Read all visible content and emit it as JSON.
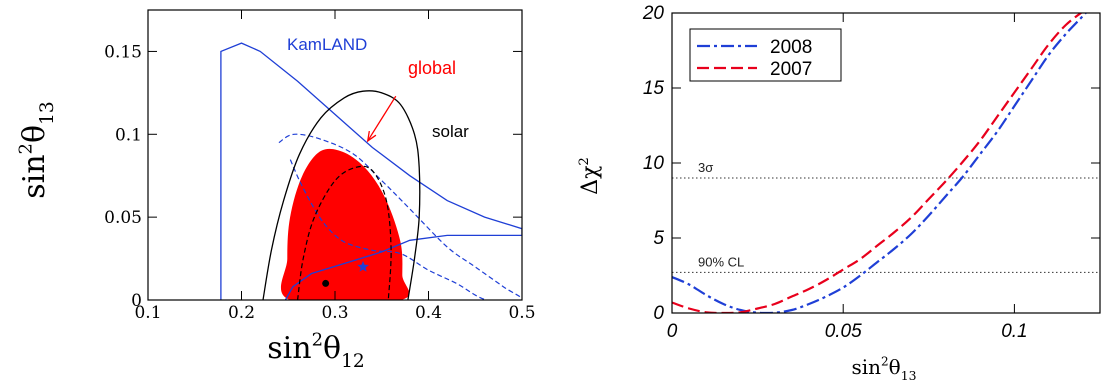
{
  "colors": {
    "kamland": "#1f3fd6",
    "global": "#ff0000",
    "solar": "#000000",
    "series_2008": "#1f3fd6",
    "series_2007": "#e8001c",
    "reference": "#333333",
    "background": "#ffffff"
  },
  "chart_data": [
    {
      "type": "contour",
      "xlabel": {
        "base": "sin",
        "sup": "2",
        "sym": "θ",
        "sub": "12"
      },
      "ylabel": {
        "base": "sin",
        "sup": "2",
        "sym": "θ",
        "sub": "13"
      },
      "xlim": [
        0.1,
        0.5
      ],
      "ylim": [
        0,
        0.175
      ],
      "xticks": [
        0.1,
        0.2,
        0.3,
        0.4,
        0.5
      ],
      "yticks": [
        0,
        0.05,
        0.1,
        0.15
      ],
      "xtick_labels": [
        "0.1",
        "0.2",
        "0.3",
        "0.4",
        "0.5"
      ],
      "ytick_labels": [
        "0",
        "0.05",
        "0.1",
        "0.15"
      ],
      "annotations": {
        "kamland": "KamLAND",
        "global": "global",
        "solar": "solar"
      },
      "regions": [
        {
          "id": "kamland",
          "style": "solid",
          "points": [
            [
              0.178,
              0
            ],
            [
              0.178,
              0.15
            ],
            [
              0.2,
              0.155
            ],
            [
              0.22,
              0.15
            ],
            [
              0.26,
              0.132
            ],
            [
              0.3,
              0.112
            ],
            [
              0.34,
              0.092
            ],
            [
              0.38,
              0.075
            ],
            [
              0.42,
              0.06
            ],
            [
              0.46,
              0.05
            ],
            [
              0.5,
              0.043
            ],
            [
              0.5,
              0.039
            ],
            [
              0.46,
              0.039
            ],
            [
              0.42,
              0.039
            ],
            [
              0.38,
              0.036
            ],
            [
              0.35,
              0.029
            ],
            [
              0.31,
              0.022
            ],
            [
              0.275,
              0.016
            ],
            [
              0.255,
              0.008
            ],
            [
              0.247,
              0
            ]
          ]
        },
        {
          "id": "kamland-inner",
          "style": "dashed",
          "points": [
            [
              0.24,
              0.095
            ],
            [
              0.256,
              0.1
            ],
            [
              0.285,
              0.097
            ],
            [
              0.32,
              0.088
            ],
            [
              0.35,
              0.072
            ],
            [
              0.38,
              0.055
            ],
            [
              0.42,
              0.032
            ],
            [
              0.45,
              0.02
            ],
            [
              0.48,
              0.008
            ],
            [
              0.5,
              0
            ],
            [
              0.462,
              0
            ],
            [
              0.43,
              0.01
            ],
            [
              0.4,
              0.018
            ],
            [
              0.37,
              0.028
            ],
            [
              0.34,
              0.03
            ],
            [
              0.31,
              0.035
            ],
            [
              0.29,
              0.045
            ],
            [
              0.275,
              0.058
            ],
            [
              0.262,
              0.072
            ],
            [
              0.252,
              0.085
            ]
          ]
        },
        {
          "id": "solar",
          "style": "solid",
          "points": [
            [
              0.223,
              0
            ],
            [
              0.232,
              0.03
            ],
            [
              0.245,
              0.06
            ],
            [
              0.262,
              0.088
            ],
            [
              0.285,
              0.11
            ],
            [
              0.31,
              0.122
            ],
            [
              0.33,
              0.126
            ],
            [
              0.35,
              0.125
            ],
            [
              0.37,
              0.118
            ],
            [
              0.385,
              0.1
            ],
            [
              0.39,
              0.08
            ],
            [
              0.39,
              0.05
            ],
            [
              0.385,
              0.025
            ],
            [
              0.378,
              0
            ]
          ]
        },
        {
          "id": "solar-inner",
          "style": "dashed",
          "points": [
            [
              0.26,
              0
            ],
            [
              0.266,
              0.025
            ],
            [
              0.278,
              0.05
            ],
            [
              0.3,
              0.072
            ],
            [
              0.322,
              0.08
            ],
            [
              0.34,
              0.078
            ],
            [
              0.355,
              0.06
            ],
            [
              0.36,
              0.03
            ],
            [
              0.357,
              0
            ]
          ]
        },
        {
          "id": "global",
          "style": "filled",
          "points": [
            [
              0.252,
              0
            ],
            [
              0.249,
              0.025
            ],
            [
              0.252,
              0.05
            ],
            [
              0.265,
              0.075
            ],
            [
              0.285,
              0.09
            ],
            [
              0.31,
              0.089
            ],
            [
              0.335,
              0.078
            ],
            [
              0.355,
              0.06
            ],
            [
              0.37,
              0.035
            ],
            [
              0.372,
              0.015
            ],
            [
              0.37,
              0
            ]
          ]
        }
      ],
      "markers": [
        {
          "id": "global-best-fit",
          "x": 0.29,
          "y": 0.01,
          "shape": "dot"
        },
        {
          "id": "kamland-best-fit",
          "x": 0.33,
          "y": 0.02,
          "shape": "star"
        }
      ],
      "arrow": {
        "from": [
          0.365,
          0.123
        ],
        "to": [
          0.335,
          0.096
        ]
      }
    },
    {
      "type": "line",
      "xlabel": {
        "base": "sin",
        "sup": "2",
        "sym": "θ",
        "sub": "13"
      },
      "ylabel": {
        "base": "Δχ",
        "sup": "2"
      },
      "xlim": [
        0,
        0.125
      ],
      "ylim": [
        0,
        20
      ],
      "xticks": [
        0,
        0.05,
        0.1
      ],
      "yticks": [
        0,
        5,
        10,
        15,
        20
      ],
      "xtick_labels": [
        "0",
        "0.05",
        "0.1"
      ],
      "ytick_labels": [
        "0",
        "5",
        "10",
        "15",
        "20"
      ],
      "legend_position": "top-left",
      "series": [
        {
          "name": "2008",
          "style": "dash-dot",
          "x": [
            0,
            0.005,
            0.01,
            0.015,
            0.02,
            0.025,
            0.03,
            0.035,
            0.04,
            0.045,
            0.05,
            0.055,
            0.06,
            0.065,
            0.07,
            0.075,
            0.08,
            0.085,
            0.09,
            0.095,
            0.1,
            0.105,
            0.11,
            0.115,
            0.12,
            0.122
          ],
          "y": [
            2.4,
            1.9,
            1.2,
            0.6,
            0.2,
            0.02,
            0.02,
            0.2,
            0.6,
            1.1,
            1.7,
            2.5,
            3.4,
            4.3,
            5.3,
            6.5,
            7.8,
            9.1,
            10.6,
            12.1,
            13.8,
            15.5,
            17.2,
            18.6,
            19.8,
            20.3
          ]
        },
        {
          "name": "2007",
          "style": "dashed",
          "x": [
            0,
            0.005,
            0.01,
            0.015,
            0.02,
            0.025,
            0.03,
            0.035,
            0.04,
            0.045,
            0.05,
            0.055,
            0.06,
            0.065,
            0.07,
            0.075,
            0.08,
            0.085,
            0.09,
            0.095,
            0.1,
            0.105,
            0.11,
            0.115,
            0.12
          ],
          "y": [
            0.7,
            0.3,
            0.05,
            0.0,
            0.05,
            0.3,
            0.6,
            1.1,
            1.6,
            2.2,
            2.9,
            3.6,
            4.5,
            5.4,
            6.4,
            7.6,
            8.8,
            10.1,
            11.5,
            13.1,
            14.7,
            16.3,
            17.9,
            19.2,
            20.1
          ]
        }
      ],
      "reference_lines": [
        {
          "id": "3sigma",
          "y": 9,
          "label": "3σ"
        },
        {
          "id": "90cl",
          "y": 2.71,
          "label": "90% CL"
        }
      ]
    }
  ]
}
